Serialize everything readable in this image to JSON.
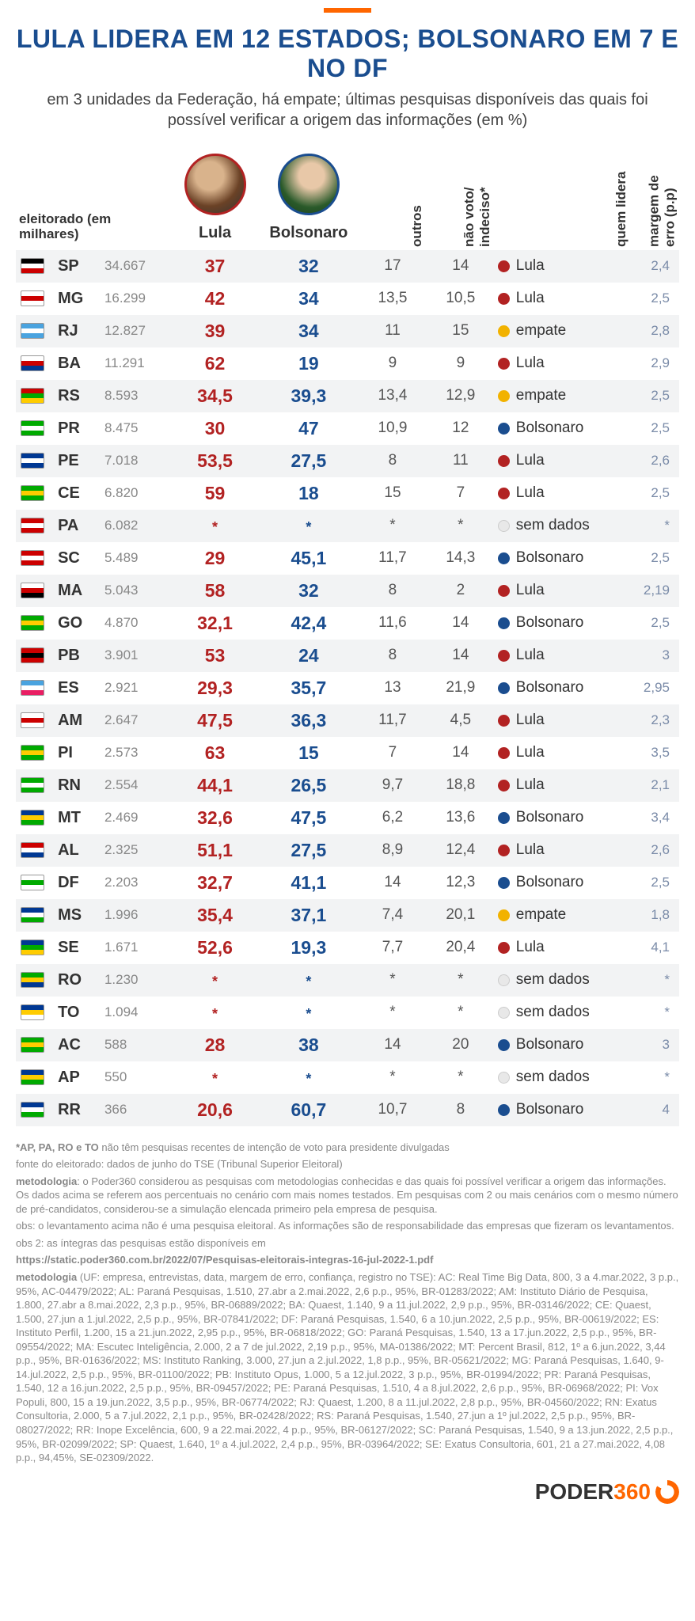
{
  "colors": {
    "accent_orange": "#ff6600",
    "title_blue": "#1a4d8f",
    "lula_red": "#b22222",
    "bolsonaro_blue": "#1a4d8f",
    "empate_yellow": "#f2b200",
    "semdados_grey": "#e8e8e8",
    "muted_grey": "#888888",
    "row_alt_bg": "#f2f3f4"
  },
  "header": {
    "title": "LULA LIDERA EM 12 ESTADOS; BOLSONARO EM 7 E NO DF",
    "subtitle": "em 3 unidades da Federação, há empate; últimas pesquisas disponíveis das quais foi possível verificar a origem das informações (em %)"
  },
  "columns": {
    "eleitorado_label": "eleitorado (em milhares)",
    "lula": "Lula",
    "bolsonaro": "Bolsonaro",
    "outros": "outros",
    "nao_voto": "não voto/ indeciso*",
    "quem_lidera": "quem lidera",
    "margem": "margem de erro (p.p)"
  },
  "leaders": {
    "lula": "Lula",
    "bolsonaro": "Bolsonaro",
    "empate": "empate",
    "semdados": "sem dados"
  },
  "rows": [
    {
      "uf": "SP",
      "eleitorado": "34.667",
      "lula": "37",
      "bolsonaro": "32",
      "outros": "17",
      "nv": "14",
      "leader": "lula",
      "margin": "2,4"
    },
    {
      "uf": "MG",
      "eleitorado": "16.299",
      "lula": "42",
      "bolsonaro": "34",
      "outros": "13,5",
      "nv": "10,5",
      "leader": "lula",
      "margin": "2,5"
    },
    {
      "uf": "RJ",
      "eleitorado": "12.827",
      "lula": "39",
      "bolsonaro": "34",
      "outros": "11",
      "nv": "15",
      "leader": "empate",
      "margin": "2,8"
    },
    {
      "uf": "BA",
      "eleitorado": "11.291",
      "lula": "62",
      "bolsonaro": "19",
      "outros": "9",
      "nv": "9",
      "leader": "lula",
      "margin": "2,9"
    },
    {
      "uf": "RS",
      "eleitorado": "8.593",
      "lula": "34,5",
      "bolsonaro": "39,3",
      "outros": "13,4",
      "nv": "12,9",
      "leader": "empate",
      "margin": "2,5"
    },
    {
      "uf": "PR",
      "eleitorado": "8.475",
      "lula": "30",
      "bolsonaro": "47",
      "outros": "10,9",
      "nv": "12",
      "leader": "bolsonaro",
      "margin": "2,5"
    },
    {
      "uf": "PE",
      "eleitorado": "7.018",
      "lula": "53,5",
      "bolsonaro": "27,5",
      "outros": "8",
      "nv": "11",
      "leader": "lula",
      "margin": "2,6"
    },
    {
      "uf": "CE",
      "eleitorado": "6.820",
      "lula": "59",
      "bolsonaro": "18",
      "outros": "15",
      "nv": "7",
      "leader": "lula",
      "margin": "2,5"
    },
    {
      "uf": "PA",
      "eleitorado": "6.082",
      "lula": "*",
      "bolsonaro": "*",
      "outros": "*",
      "nv": "*",
      "leader": "semdados",
      "margin": "*"
    },
    {
      "uf": "SC",
      "eleitorado": "5.489",
      "lula": "29",
      "bolsonaro": "45,1",
      "outros": "11,7",
      "nv": "14,3",
      "leader": "bolsonaro",
      "margin": "2,5"
    },
    {
      "uf": "MA",
      "eleitorado": "5.043",
      "lula": "58",
      "bolsonaro": "32",
      "outros": "8",
      "nv": "2",
      "leader": "lula",
      "margin": "2,19"
    },
    {
      "uf": "GO",
      "eleitorado": "4.870",
      "lula": "32,1",
      "bolsonaro": "42,4",
      "outros": "11,6",
      "nv": "14",
      "leader": "bolsonaro",
      "margin": "2,5"
    },
    {
      "uf": "PB",
      "eleitorado": "3.901",
      "lula": "53",
      "bolsonaro": "24",
      "outros": "8",
      "nv": "14",
      "leader": "lula",
      "margin": "3"
    },
    {
      "uf": "ES",
      "eleitorado": "2.921",
      "lula": "29,3",
      "bolsonaro": "35,7",
      "outros": "13",
      "nv": "21,9",
      "leader": "bolsonaro",
      "margin": "2,95"
    },
    {
      "uf": "AM",
      "eleitorado": "2.647",
      "lula": "47,5",
      "bolsonaro": "36,3",
      "outros": "11,7",
      "nv": "4,5",
      "leader": "lula",
      "margin": "2,3"
    },
    {
      "uf": "PI",
      "eleitorado": "2.573",
      "lula": "63",
      "bolsonaro": "15",
      "outros": "7",
      "nv": "14",
      "leader": "lula",
      "margin": "3,5"
    },
    {
      "uf": "RN",
      "eleitorado": "2.554",
      "lula": "44,1",
      "bolsonaro": "26,5",
      "outros": "9,7",
      "nv": "18,8",
      "leader": "lula",
      "margin": "2,1"
    },
    {
      "uf": "MT",
      "eleitorado": "2.469",
      "lula": "32,6",
      "bolsonaro": "47,5",
      "outros": "6,2",
      "nv": "13,6",
      "leader": "bolsonaro",
      "margin": "3,4"
    },
    {
      "uf": "AL",
      "eleitorado": "2.325",
      "lula": "51,1",
      "bolsonaro": "27,5",
      "outros": "8,9",
      "nv": "12,4",
      "leader": "lula",
      "margin": "2,6"
    },
    {
      "uf": "DF",
      "eleitorado": "2.203",
      "lula": "32,7",
      "bolsonaro": "41,1",
      "outros": "14",
      "nv": "12,3",
      "leader": "bolsonaro",
      "margin": "2,5"
    },
    {
      "uf": "MS",
      "eleitorado": "1.996",
      "lula": "35,4",
      "bolsonaro": "37,1",
      "outros": "7,4",
      "nv": "20,1",
      "leader": "empate",
      "margin": "1,8"
    },
    {
      "uf": "SE",
      "eleitorado": "1.671",
      "lula": "52,6",
      "bolsonaro": "19,3",
      "outros": "7,7",
      "nv": "20,4",
      "leader": "lula",
      "margin": "4,1"
    },
    {
      "uf": "RO",
      "eleitorado": "1.230",
      "lula": "*",
      "bolsonaro": "*",
      "outros": "*",
      "nv": "*",
      "leader": "semdados",
      "margin": "*"
    },
    {
      "uf": "TO",
      "eleitorado": "1.094",
      "lula": "*",
      "bolsonaro": "*",
      "outros": "*",
      "nv": "*",
      "leader": "semdados",
      "margin": "*"
    },
    {
      "uf": "AC",
      "eleitorado": "588",
      "lula": "28",
      "bolsonaro": "38",
      "outros": "14",
      "nv": "20",
      "leader": "bolsonaro",
      "margin": "3"
    },
    {
      "uf": "AP",
      "eleitorado": "550",
      "lula": "*",
      "bolsonaro": "*",
      "outros": "*",
      "nv": "*",
      "leader": "semdados",
      "margin": "*"
    },
    {
      "uf": "RR",
      "eleitorado": "366",
      "lula": "20,6",
      "bolsonaro": "60,7",
      "outros": "10,7",
      "nv": "8",
      "leader": "bolsonaro",
      "margin": "4"
    }
  ],
  "footnotes": [
    "*AP, PA, RO e TO não têm pesquisas recentes de intenção de voto para presidente divulgadas",
    "fonte do eleitorado: dados de junho do TSE (Tribunal Superior Eleitoral)",
    "metodologia: o Poder360 considerou as pesquisas com metodologias conhecidas e das quais foi possível verificar a origem das informações. Os dados acima se referem aos percentuais no cenário com mais nomes testados. Em pesquisas com 2 ou mais cenários com o mesmo número de pré-candidatos, considerou-se a simulação elencada primeiro pela empresa de pesquisa.",
    "obs: o levantamento acima não é uma pesquisa eleitoral. As informações são de responsabilidade das empresas que fizeram os levantamentos.",
    "obs 2: as íntegras das pesquisas estão disponíveis em",
    "https://static.poder360.com.br/2022/07/Pesquisas-eleitorais-integras-16-jul-2022-1.pdf",
    "metodologia (UF: empresa, entrevistas, data, margem de erro, confiança, registro no TSE): AC: Real Time Big Data, 800, 3 a 4.mar.2022, 3 p.p., 95%, AC-04479/2022; AL: Paraná Pesquisas, 1.510, 27.abr a 2.mai.2022, 2,6 p.p., 95%, BR-01283/2022; AM: Instituto Diário de Pesquisa, 1.800, 27.abr a 8.mai.2022, 2,3 p.p., 95%, BR-06889/2022; BA: Quaest, 1.140, 9 a 11.jul.2022, 2,9 p.p., 95%, BR-03146/2022; CE: Quaest, 1.500, 27.jun a 1.jul.2022, 2,5 p.p., 95%, BR-07841/2022; DF: Paraná Pesquisas, 1.540, 6 a 10.jun.2022, 2,5 p.p., 95%, BR-00619/2022; ES: Instituto Perfil, 1.200, 15 a 21.jun.2022, 2,95 p.p., 95%, BR-06818/2022; GO: Paraná Pesquisas, 1.540, 13 a 17.jun.2022, 2,5 p.p., 95%, BR-09554/2022; MA: Escutec Inteligência, 2.000, 2 a 7 de jul.2022, 2,19 p.p., 95%, MA-01386/2022; MT: Percent Brasil, 812, 1º a 6.jun.2022, 3,44 p.p., 95%, BR-01636/2022; MS: Instituto Ranking, 3.000, 27.jun a 2.jul.2022, 1,8 p.p., 95%, BR-05621/2022; MG: Paraná Pesquisas, 1.640, 9-14.jul.2022, 2,5 p.p., 95%, BR-01100/2022; PB: Instituto Opus, 1.000, 5 a 12.jul.2022, 3 p.p., 95%, BR-01994/2022; PR: Paraná Pesquisas, 1.540, 12 a 16.jun.2022, 2,5 p.p., 95%, BR-09457/2022; PE: Paraná Pesquisas, 1.510, 4 a 8.jul.2022, 2,6 p.p., 95%, BR-06968/2022; PI: Vox Populi, 800, 15 a 19.jun.2022, 3,5 p.p., 95%, BR-06774/2022; RJ: Quaest, 1.200, 8 a 11.jul.2022, 2,8 p.p., 95%, BR-04560/2022; RN: Exatus Consultoria, 2.000, 5 a 7.jul.2022, 2,1 p.p., 95%, BR-02428/2022; RS: Paraná Pesquisas, 1.540, 27.jun a 1º jul.2022, 2,5 p.p., 95%, BR-08027/2022; RR: Inope Excelência, 600, 9 a 22.mai.2022, 4 p.p., 95%, BR-06127/2022; SC: Paraná Pesquisas, 1.540, 9 a 13.jun.2022, 2,5 p.p., 95%, BR-02099/2022; SP: Quaest, 1.640, 1º a 4.jul.2022, 2,4 p.p., 95%, BR-03964/2022; SE: Exatus Consultoria, 601, 21 a 27.mai.2022, 4,08 p.p., 94,45%, SE-02309/2022."
  ],
  "logo": {
    "brand": "PODER",
    "num": "360"
  }
}
